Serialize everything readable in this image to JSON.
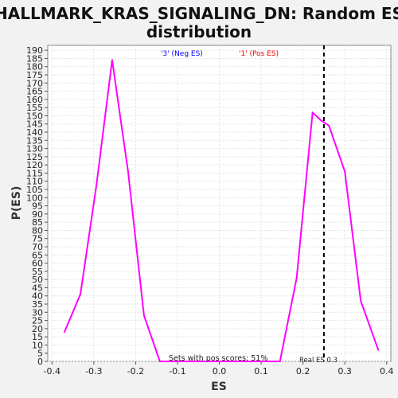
{
  "chart_data": {
    "type": "line",
    "title_line1": "HALLMARK_KRAS_SIGNALING_DN: Random ES",
    "title_line2": "distribution",
    "xlabel": "ES",
    "ylabel": "P(ES)",
    "xlim": [
      -0.41,
      0.41
    ],
    "ylim": [
      0,
      193
    ],
    "x_ticks": [
      "-0.4",
      "-0.3",
      "-0.2",
      "-0.1",
      "0.0",
      "0.1",
      "0.2",
      "0.3",
      "0.4"
    ],
    "y_ticks": [
      "0",
      "5",
      "10",
      "15",
      "20",
      "25",
      "30",
      "35",
      "40",
      "45",
      "50",
      "55",
      "60",
      "65",
      "70",
      "75",
      "80",
      "85",
      "90",
      "95",
      "100",
      "105",
      "110",
      "115",
      "120",
      "125",
      "130",
      "135",
      "140",
      "145",
      "150",
      "155",
      "160",
      "165",
      "170",
      "175",
      "180",
      "185",
      "190"
    ],
    "grid": true,
    "legend": [
      {
        "label": "'3' (Neg ES)",
        "color": "#0000ff"
      },
      {
        "label": "'1' (Pos ES)",
        "color": "#ff0000"
      }
    ],
    "series": [
      {
        "color": "#ff00ff",
        "x": [
          -0.37,
          -0.332,
          -0.294,
          -0.256,
          -0.218,
          -0.18,
          -0.142,
          -0.104,
          -0.066,
          -0.028,
          0.01,
          0.048,
          0.086,
          0.124,
          0.145,
          0.185,
          0.223,
          0.244,
          0.262,
          0.3,
          0.338,
          0.38
        ],
        "y": [
          18,
          41,
          107,
          184,
          116,
          28,
          0,
          0,
          0,
          0,
          0,
          0,
          0,
          0,
          0,
          51,
          152,
          147,
          144,
          116,
          37,
          7
        ]
      }
    ],
    "real_es": 0.25,
    "real_es_label": "Real ES 0.3",
    "annotation": "Sets with pos scores: 51%"
  }
}
